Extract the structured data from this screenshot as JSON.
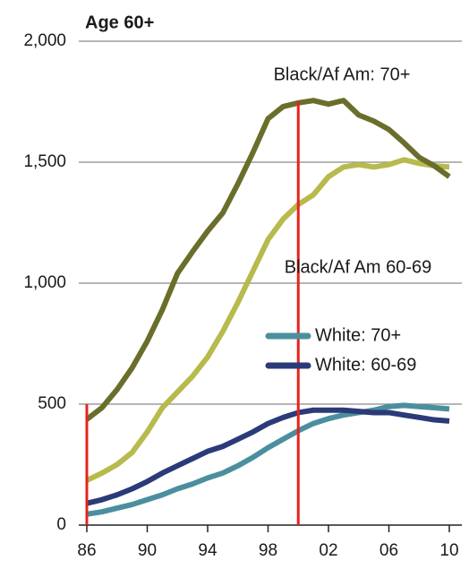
{
  "chart_data": {
    "type": "line",
    "title": "Age 60+",
    "x": [
      1986,
      1987,
      1988,
      1989,
      1990,
      1991,
      1992,
      1993,
      1994,
      1995,
      1996,
      1997,
      1998,
      1999,
      2000,
      2001,
      2002,
      2003,
      2004,
      2005,
      2006,
      2007,
      2008,
      2009,
      2010
    ],
    "xlim": [
      1986,
      2010
    ],
    "xticks": [
      {
        "value": 1986,
        "label": "86"
      },
      {
        "value": 1990,
        "label": "90"
      },
      {
        "value": 1994,
        "label": "94"
      },
      {
        "value": 1998,
        "label": "98"
      },
      {
        "value": 2002,
        "label": "02"
      },
      {
        "value": 2006,
        "label": "06"
      },
      {
        "value": 2010,
        "label": "10"
      }
    ],
    "ylim": [
      0,
      2000
    ],
    "yticks": [
      0,
      500,
      {
        "value": 1000,
        "label": "1,000"
      },
      {
        "value": 1500,
        "label": "1,500"
      },
      {
        "value": 2000,
        "label": "2,000"
      }
    ],
    "grid": true,
    "series": [
      {
        "name": "Black/Af Am: 70+",
        "color": "#6b6d2b",
        "values": [
          437,
          485,
          560,
          650,
          760,
          890,
          1040,
          1130,
          1215,
          1290,
          1410,
          1540,
          1680,
          1730,
          1745,
          1755,
          1740,
          1755,
          1695,
          1670,
          1635,
          1580,
          1520,
          1485,
          1440
        ]
      },
      {
        "name": "Black/Af Am 60-69",
        "color": "#b7ba4c",
        "values": [
          185,
          215,
          250,
          300,
          385,
          485,
          550,
          615,
          695,
          800,
          920,
          1050,
          1180,
          1265,
          1325,
          1365,
          1440,
          1480,
          1490,
          1480,
          1490,
          1510,
          1495,
          1485,
          1480
        ]
      },
      {
        "name": "White: 70+",
        "color": "#4b8f9f",
        "values": [
          45,
          55,
          70,
          85,
          105,
          125,
          150,
          170,
          195,
          215,
          245,
          280,
          320,
          355,
          390,
          420,
          440,
          455,
          465,
          475,
          490,
          495,
          490,
          485,
          480
        ]
      },
      {
        "name": "White: 60-69",
        "color": "#2b3a78",
        "values": [
          90,
          105,
          125,
          150,
          180,
          215,
          245,
          275,
          305,
          325,
          355,
          385,
          420,
          445,
          465,
          475,
          475,
          475,
          470,
          465,
          465,
          455,
          445,
          435,
          430
        ]
      }
    ],
    "reference_lines": [
      {
        "x": 1986,
        "y": 500,
        "color": "#e8231c"
      },
      {
        "x": 2000,
        "y": 1750,
        "color": "#e8231c"
      }
    ]
  }
}
